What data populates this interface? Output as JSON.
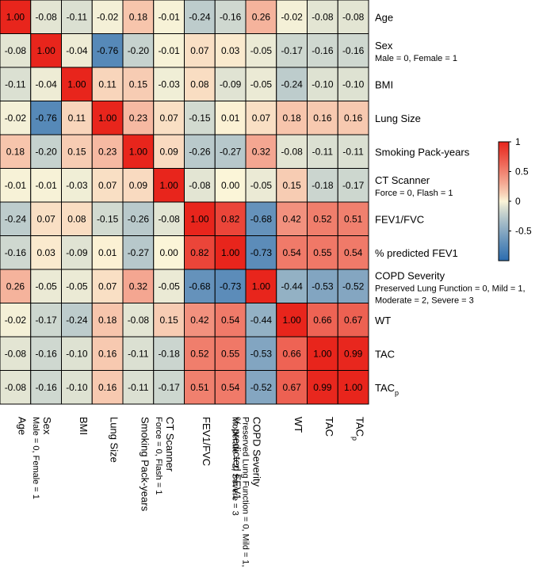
{
  "chart_data": {
    "type": "heatmap",
    "variables": [
      {
        "label": "Age",
        "sub": ""
      },
      {
        "label": "Sex",
        "sub": "Male = 0, Female = 1"
      },
      {
        "label": "BMI",
        "sub": ""
      },
      {
        "label": "Lung Size",
        "sub": ""
      },
      {
        "label": "Smoking Pack-years",
        "sub": ""
      },
      {
        "label": "CT Scanner",
        "sub": "Force = 0, Flash = 1"
      },
      {
        "label": "FEV1/FVC",
        "sub": ""
      },
      {
        "label": "% predicted FEV1",
        "sub": ""
      },
      {
        "label": "COPD Severity",
        "sub": "Preserved Lung Function = 0, Mild = 1,",
        "sub2": "Moderate = 2, Severe = 3"
      },
      {
        "label": "WT",
        "sub": ""
      },
      {
        "label": "TAC",
        "sub": ""
      },
      {
        "label": "TAC",
        "sub": "",
        "subscript": "p"
      }
    ],
    "matrix": [
      [
        1.0,
        -0.08,
        -0.11,
        -0.02,
        0.18,
        -0.01,
        -0.24,
        -0.16,
        0.26,
        -0.02,
        -0.08,
        -0.08
      ],
      [
        -0.08,
        1.0,
        -0.04,
        -0.76,
        -0.2,
        -0.01,
        0.07,
        0.03,
        -0.05,
        -0.17,
        -0.16,
        -0.16
      ],
      [
        -0.11,
        -0.04,
        1.0,
        0.11,
        0.15,
        -0.03,
        0.08,
        -0.09,
        -0.05,
        -0.24,
        -0.1,
        -0.1
      ],
      [
        -0.02,
        -0.76,
        0.11,
        1.0,
        0.23,
        0.07,
        -0.15,
        0.01,
        0.07,
        0.18,
        0.16,
        0.16
      ],
      [
        0.18,
        -0.2,
        0.15,
        0.23,
        1.0,
        0.09,
        -0.26,
        -0.27,
        0.32,
        -0.08,
        -0.11,
        -0.11
      ],
      [
        -0.01,
        -0.01,
        -0.03,
        0.07,
        0.09,
        1.0,
        -0.08,
        0.0,
        -0.05,
        0.15,
        -0.18,
        -0.17
      ],
      [
        -0.24,
        0.07,
        0.08,
        -0.15,
        -0.26,
        -0.08,
        1.0,
        0.82,
        -0.68,
        0.42,
        0.52,
        0.51
      ],
      [
        -0.16,
        0.03,
        -0.09,
        0.01,
        -0.27,
        0.0,
        0.82,
        1.0,
        -0.73,
        0.54,
        0.55,
        0.54
      ],
      [
        0.26,
        -0.05,
        -0.05,
        0.07,
        0.32,
        -0.05,
        -0.68,
        -0.73,
        1.0,
        -0.44,
        -0.53,
        -0.52
      ],
      [
        -0.02,
        -0.17,
        -0.24,
        0.18,
        -0.08,
        0.15,
        0.42,
        0.54,
        -0.44,
        1.0,
        0.66,
        0.67
      ],
      [
        -0.08,
        -0.16,
        -0.1,
        0.16,
        -0.11,
        -0.18,
        0.52,
        0.55,
        -0.53,
        0.66,
        1.0,
        0.99
      ],
      [
        -0.08,
        -0.16,
        -0.1,
        0.16,
        -0.11,
        -0.17,
        0.51,
        0.54,
        -0.52,
        0.67,
        0.99,
        1.0
      ]
    ],
    "colorbar": {
      "range": [
        -1,
        1
      ],
      "ticks": [
        1,
        0.5,
        0,
        -0.5
      ],
      "tick_labels": [
        "1",
        "0.5",
        "0",
        "-0.5"
      ],
      "colors": {
        "low": "#2b6cb0",
        "mid": "#fbf5d8",
        "high": "#e8251c"
      }
    }
  }
}
